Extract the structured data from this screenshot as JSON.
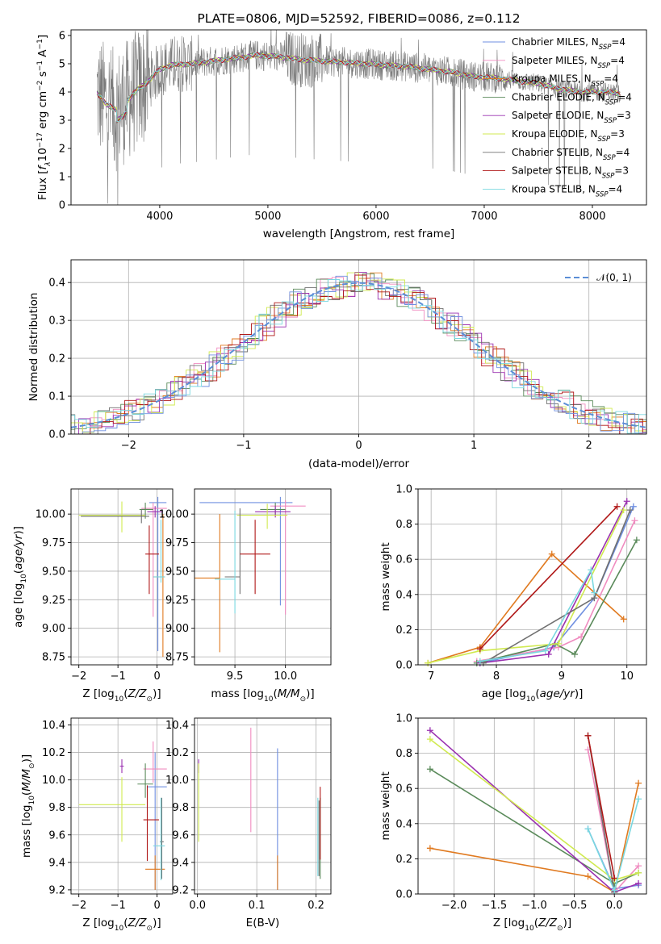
{
  "colors": [
    "#6f8fe0",
    "#f08cc0",
    "#e07a20",
    "#5a8a5a",
    "#9a30b0",
    "#d0ea50",
    "#707070",
    "#b01818",
    "#7ad8e0"
  ],
  "chart_data": [
    {
      "id": "spectrum",
      "type": "line",
      "title": "PLATE=0806, MJD=52592, FIBERID=0086, z=0.112",
      "xlabel": "wavelength [Angstrom, rest frame]",
      "ylabel_parts": {
        "pre": "Flux [",
        "f": "f",
        "lam": "λ",
        "mid": "10",
        "sup1": "−17",
        "unit": " erg cm",
        "sup2": "−2",
        "s": " s",
        "sup3": "−1",
        "a": " A",
        "sup4": "−1",
        "post": "]"
      },
      "xlim": [
        3180,
        8500
      ],
      "ylim": [
        0,
        6.2
      ],
      "xticks": [
        4000,
        5000,
        6000,
        7000,
        8000
      ],
      "yticks": [
        0,
        1,
        2,
        3,
        4,
        5,
        6
      ],
      "legend": [
        {
          "name": "Chabrier MILES, N",
          "sub": "SSP",
          "eq": "=4"
        },
        {
          "name": "Salpeter MILES, N",
          "sub": "SSP",
          "eq": "=4"
        },
        {
          "name": "Kroupa MILES, N",
          "sub": "SSP",
          "eq": "=4"
        },
        {
          "name": "Chabrier ELODIE, N",
          "sub": "SSP",
          "eq": "=4"
        },
        {
          "name": "Salpeter ELODIE, N",
          "sub": "SSP",
          "eq": "=3"
        },
        {
          "name": "Kroupa ELODIE, N",
          "sub": "SSP",
          "eq": "=3"
        },
        {
          "name": "Chabrier STELIB, N",
          "sub": "SSP",
          "eq": "=4"
        },
        {
          "name": "Salpeter STELIB, N",
          "sub": "SSP",
          "eq": "=3"
        },
        {
          "name": "Kroupa STELIB, N",
          "sub": "SSP",
          "eq": "=4"
        }
      ],
      "continuum": [
        [
          3420,
          3.95
        ],
        [
          3500,
          3.6
        ],
        [
          3600,
          3.35
        ],
        [
          3700,
          3.7
        ],
        [
          3800,
          4.1
        ],
        [
          3900,
          4.4
        ],
        [
          4000,
          4.8
        ],
        [
          4100,
          4.95
        ],
        [
          4300,
          5.0
        ],
        [
          4500,
          5.1
        ],
        [
          4700,
          5.2
        ],
        [
          4900,
          5.3
        ],
        [
          5100,
          5.25
        ],
        [
          5300,
          5.15
        ],
        [
          5500,
          5.1
        ],
        [
          5700,
          5.05
        ],
        [
          5900,
          5.0
        ],
        [
          6100,
          4.95
        ],
        [
          6300,
          4.9
        ],
        [
          6500,
          4.8
        ],
        [
          6700,
          4.7
        ],
        [
          6900,
          4.55
        ],
        [
          7100,
          4.5
        ],
        [
          7300,
          4.4
        ],
        [
          7500,
          4.3
        ],
        [
          7700,
          4.1
        ],
        [
          7900,
          4.0
        ],
        [
          8100,
          4.0
        ],
        [
          8260,
          3.95
        ]
      ]
    },
    {
      "id": "residuals",
      "type": "histogram",
      "xlabel": "(data-model)/error",
      "ylabel": "Normed distribution",
      "xlim": [
        -2.5,
        2.5
      ],
      "ylim": [
        0,
        0.46
      ],
      "xticks": [
        -2,
        -1,
        0,
        1,
        2
      ],
      "yticks": [
        0.0,
        0.1,
        0.2,
        0.3,
        0.4
      ],
      "legend": "𝒩(0, 1)"
    },
    {
      "id": "age_vs_Z",
      "type": "errorbar",
      "xlabel": "Z [log10(Z/Z⊙)]",
      "ylabel": "age [log10(age/yr)]",
      "xlim": [
        -2.2,
        0.4
      ],
      "ylim": [
        8.68,
        10.22
      ],
      "xticks": [
        -2,
        -1,
        0
      ],
      "yticks": [
        8.75,
        9.0,
        9.25,
        9.5,
        9.75,
        10.0
      ],
      "points": [
        {
          "c": 0,
          "x": 0.02,
          "xe": [
            0.22,
            0.22
          ],
          "y": 10.1,
          "ye": [
            1.3,
            0.05
          ]
        },
        {
          "c": 1,
          "x": -0.1,
          "xe": [
            0.3,
            0.35
          ],
          "y": 10.05,
          "ye": [
            0.95,
            0.05
          ]
        },
        {
          "c": 2,
          "x": 0.15,
          "xe": [
            0.25,
            0.05
          ],
          "y": 9.45,
          "ye": [
            0.7,
            0.55
          ]
        },
        {
          "c": 3,
          "x": -0.3,
          "xe": [
            0.15,
            0.2
          ],
          "y": 10.04,
          "ye": [
            0.08,
            0.06
          ]
        },
        {
          "c": 4,
          "x": -0.05,
          "xe": [
            0.2,
            0.2
          ],
          "y": 10.02,
          "ye": [
            0.05,
            0.05
          ]
        },
        {
          "c": 5,
          "x": -0.9,
          "xe": [
            1.1,
            0.6
          ],
          "y": 9.99,
          "ye": [
            0.15,
            0.12
          ]
        },
        {
          "c": 6,
          "x": -0.4,
          "xe": [
            1.55,
            0.2
          ],
          "y": 9.98,
          "ye": [
            0.06,
            0.06
          ]
        },
        {
          "c": 7,
          "x": -0.2,
          "xe": [
            0.1,
            0.25
          ],
          "y": 9.65,
          "ye": [
            0.35,
            0.25
          ]
        },
        {
          "c": 8,
          "x": 0.1,
          "xe": [
            0.2,
            0.1
          ],
          "y": 9.45,
          "ye": [
            0.05,
            0.5
          ]
        }
      ]
    },
    {
      "id": "age_vs_mass",
      "type": "errorbar",
      "xlabel": "mass [log10(M/M⊙)]",
      "xlim": [
        9.1,
        10.45
      ],
      "ylim": [
        8.68,
        10.22
      ],
      "xticks": [
        9.5,
        10.0
      ],
      "yticks": [
        8.75,
        9.0,
        9.25,
        9.5,
        9.75,
        10.0
      ],
      "points": [
        {
          "c": 0,
          "x": 9.95,
          "xe": [
            0.8,
            0.12
          ],
          "y": 10.1,
          "ye": [
            0.9,
            0.05
          ]
        },
        {
          "c": 1,
          "x": 10.0,
          "xe": [
            0.15,
            0.2
          ],
          "y": 10.07,
          "ye": [
            0.95,
            0.05
          ]
        },
        {
          "c": 2,
          "x": 9.35,
          "xe": [
            0.25,
            0.0
          ],
          "y": 9.44,
          "ye": [
            0.65,
            0.56
          ]
        },
        {
          "c": 3,
          "x": 9.9,
          "xe": [
            0.15,
            0.1
          ],
          "y": 10.04,
          "ye": [
            0.06,
            0.06
          ]
        },
        {
          "c": 4,
          "x": 9.9,
          "xe": [
            0.2,
            0.15
          ],
          "y": 10.02,
          "ye": [
            0.05,
            0.05
          ]
        },
        {
          "c": 5,
          "x": 9.82,
          "xe": [
            0.3,
            0.2
          ],
          "y": 9.99,
          "ye": [
            0.12,
            0.1
          ]
        },
        {
          "c": 6,
          "x": 9.55,
          "xe": [
            0.15,
            0.0
          ],
          "y": 9.45,
          "ye": [
            0.15,
            0.6
          ]
        },
        {
          "c": 7,
          "x": 9.7,
          "xe": [
            0.15,
            0.15
          ],
          "y": 9.65,
          "ye": [
            0.35,
            0.3
          ]
        },
        {
          "c": 8,
          "x": 9.5,
          "xe": [
            0.2,
            0.0
          ],
          "y": 9.43,
          "ye": [
            0.3,
            0.6
          ]
        }
      ]
    },
    {
      "id": "weight_vs_age",
      "type": "line",
      "xlabel": "age [log10(age/yr)]",
      "ylabel": "mass weight",
      "xlim": [
        6.8,
        10.3
      ],
      "ylim": [
        0,
        1.0
      ],
      "xticks": [
        7,
        8,
        9,
        10
      ],
      "yticks": [
        0.0,
        0.2,
        0.4,
        0.6,
        0.8,
        1.0
      ],
      "series": [
        {
          "c": 0,
          "x": [
            7.75,
            8.88,
            9.5,
            10.1
          ],
          "y": [
            0.01,
            0.1,
            0.38,
            0.9
          ]
        },
        {
          "c": 1,
          "x": [
            7.7,
            8.95,
            9.3,
            10.12
          ],
          "y": [
            0.02,
            0.1,
            0.16,
            0.82
          ]
        },
        {
          "c": 2,
          "x": [
            6.95,
            7.75,
            8.85,
            9.95
          ],
          "y": [
            0.01,
            0.1,
            0.63,
            0.26
          ]
        },
        {
          "c": 3,
          "x": [
            7.7,
            8.9,
            9.2,
            10.15
          ],
          "y": [
            0.01,
            0.12,
            0.06,
            0.71
          ]
        },
        {
          "c": 4,
          "x": [
            7.75,
            8.8,
            10.0
          ],
          "y": [
            0.01,
            0.06,
            0.93
          ]
        },
        {
          "c": 5,
          "x": [
            6.95,
            7.75,
            8.95,
            9.95
          ],
          "y": [
            0.01,
            0.08,
            0.12,
            0.88
          ]
        },
        {
          "c": 6,
          "x": [
            7.8,
            9.5,
            10.05
          ],
          "y": [
            0.01,
            0.38,
            0.88
          ]
        },
        {
          "c": 7,
          "x": [
            7.75,
            9.85
          ],
          "y": [
            0.09,
            0.9
          ]
        },
        {
          "c": 8,
          "x": [
            7.75,
            8.75,
            9.45,
            9.5
          ],
          "y": [
            0.02,
            0.08,
            0.54,
            0.41
          ]
        }
      ]
    },
    {
      "id": "mass_vs_Z",
      "type": "errorbar",
      "xlabel": "Z [log10(Z/Z⊙)]",
      "ylabel": "mass [log10(M/M⊙)]",
      "xlim": [
        -2.2,
        0.4
      ],
      "ylim": [
        9.17,
        10.45
      ],
      "xticks": [
        -2,
        -1,
        0
      ],
      "yticks": [
        9.2,
        9.4,
        9.6,
        9.8,
        10.0,
        10.2,
        10.4
      ],
      "points": [
        {
          "c": 0,
          "x": -0.05,
          "xe": [
            0.2,
            0.3
          ],
          "y": 9.95,
          "ye": [
            0.75,
            0.25
          ]
        },
        {
          "c": 1,
          "x": -0.1,
          "xe": [
            0.25,
            0.35
          ],
          "y": 10.08,
          "ye": [
            0.1,
            0.2
          ]
        },
        {
          "c": 2,
          "x": -0.05,
          "xe": [
            0.25,
            0.25
          ],
          "y": 9.35,
          "ye": [
            0.15,
            0.1
          ]
        },
        {
          "c": 3,
          "x": -0.3,
          "xe": [
            0.2,
            0.2
          ],
          "y": 9.97,
          "ye": [
            0.1,
            0.15
          ]
        },
        {
          "c": 4,
          "x": -0.9,
          "xe": [
            0.05,
            0.05
          ],
          "y": 10.1,
          "ye": [
            0.05,
            0.05
          ]
        },
        {
          "c": 5,
          "x": -0.9,
          "xe": [
            1.1,
            0.6
          ],
          "y": 9.82,
          "ye": [
            0.27,
            0.2
          ]
        },
        {
          "c": 6,
          "x": 0.12,
          "xe": [
            0.05,
            0.05
          ],
          "y": 9.55,
          "ye": [
            0.27,
            0.32
          ]
        },
        {
          "c": 7,
          "x": -0.25,
          "xe": [
            0.1,
            0.3
          ],
          "y": 9.71,
          "ye": [
            0.3,
            0.25
          ]
        },
        {
          "c": 8,
          "x": 0.1,
          "xe": [
            0.2,
            0.1
          ],
          "y": 9.52,
          "ye": [
            0.25,
            0.35
          ]
        }
      ]
    },
    {
      "id": "mass_vs_ebv",
      "type": "errorbar",
      "xlabel": "E(B-V)",
      "xlim": [
        -0.005,
        0.225
      ],
      "ylim": [
        9.17,
        10.45
      ],
      "xticks": [
        0.0,
        0.1,
        0.2
      ],
      "yticks": [
        9.2,
        9.4,
        9.6,
        9.8,
        10.0,
        10.2,
        10.4
      ],
      "points": [
        {
          "c": 0,
          "x": 0.135,
          "xe": [
            0,
            0
          ],
          "y": 9.95,
          "ye": [
            0.75,
            0.28
          ]
        },
        {
          "c": 1,
          "x": 0.09,
          "xe": [
            0,
            0
          ],
          "y": 10.0,
          "ye": [
            0.38,
            0.38
          ]
        },
        {
          "c": 2,
          "x": 0.135,
          "xe": [
            0,
            0
          ],
          "y": 9.3,
          "ye": [
            0.1,
            0.15
          ]
        },
        {
          "c": 3,
          "x": 0.207,
          "xe": [
            0,
            0
          ],
          "y": 9.55,
          "ye": [
            0.27,
            0.32
          ]
        },
        {
          "c": 4,
          "x": 0.002,
          "xe": [
            0,
            0
          ],
          "y": 10.1,
          "ye": [
            0.05,
            0.05
          ]
        },
        {
          "c": 5,
          "x": 0.002,
          "xe": [
            0,
            0
          ],
          "y": 9.82,
          "ye": [
            0.27,
            0.3
          ]
        },
        {
          "c": 6,
          "x": 0.205,
          "xe": [
            0,
            0
          ],
          "y": 9.55,
          "ye": [
            0.25,
            0.3
          ]
        },
        {
          "c": 7,
          "x": 0.207,
          "xe": [
            0,
            0
          ],
          "y": 9.72,
          "ye": [
            0.3,
            0.23
          ]
        },
        {
          "c": 8,
          "x": 0.203,
          "xe": [
            0,
            0
          ],
          "y": 9.55,
          "ye": [
            0.25,
            0.32
          ]
        }
      ]
    },
    {
      "id": "weight_vs_Z",
      "type": "line",
      "xlabel": "Z [log10(Z/Z⊙)]",
      "ylabel": "mass weight",
      "xlim": [
        -2.45,
        0.4
      ],
      "ylim": [
        0,
        1.0
      ],
      "xticks": [
        -2.0,
        -1.5,
        -1.0,
        -0.5,
        0.0
      ],
      "yticks": [
        0.0,
        0.2,
        0.4,
        0.6,
        0.8,
        1.0
      ],
      "series": [
        {
          "c": 0,
          "x": [
            -0.33,
            0.0,
            0.3
          ],
          "y": [
            0.37,
            0.03,
            0.05
          ]
        },
        {
          "c": 1,
          "x": [
            -0.33,
            0.0,
            0.3
          ],
          "y": [
            0.82,
            0.01,
            0.16
          ]
        },
        {
          "c": 2,
          "x": [
            -2.3,
            -0.33,
            0.0,
            0.3
          ],
          "y": [
            0.26,
            0.1,
            0.01,
            0.63
          ]
        },
        {
          "c": 3,
          "x": [
            -2.3,
            0.0,
            0.3
          ],
          "y": [
            0.71,
            0.06,
            0.12
          ]
        },
        {
          "c": 4,
          "x": [
            -2.3,
            0.0,
            0.3
          ],
          "y": [
            0.93,
            0.01,
            0.06
          ]
        },
        {
          "c": 5,
          "x": [
            -2.3,
            0.0,
            0.3
          ],
          "y": [
            0.88,
            0.08,
            0.12
          ]
        },
        {
          "c": 6,
          "x": [
            -0.33,
            0.0
          ],
          "y": [
            0.9,
            0.01
          ]
        },
        {
          "c": 7,
          "x": [
            -0.33,
            0.0
          ],
          "y": [
            0.9,
            0.09
          ]
        },
        {
          "c": 8,
          "x": [
            -0.33,
            0.0,
            0.3
          ],
          "y": [
            0.37,
            0.02,
            0.54
          ]
        }
      ]
    }
  ]
}
